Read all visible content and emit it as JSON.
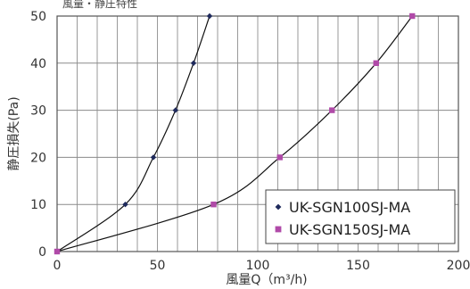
{
  "chart_data": {
    "type": "line",
    "title": "",
    "top_fragment": "風量・静圧特性",
    "xlabel": "風量Q（m³/h)",
    "ylabel": "静圧損失(Pa)",
    "xlim": [
      0,
      200
    ],
    "ylim": [
      0,
      50
    ],
    "x_ticks": [
      0,
      50,
      100,
      150,
      200
    ],
    "y_ticks": [
      0,
      10,
      20,
      30,
      40,
      50
    ],
    "minor_x_step": 10,
    "grid": true,
    "legend_position": "bottom-right",
    "series": [
      {
        "name": "UK-SGN100SJ-MA",
        "marker": "diamond",
        "color": "#1f2a5c",
        "points": [
          [
            0,
            0
          ],
          [
            34,
            10
          ],
          [
            48,
            20
          ],
          [
            59,
            30
          ],
          [
            68,
            40
          ],
          [
            76,
            50
          ]
        ]
      },
      {
        "name": "UK-SGN150SJ-MA",
        "marker": "square",
        "color": "#b04aa8",
        "points": [
          [
            0,
            0
          ],
          [
            78,
            10
          ],
          [
            111,
            20
          ],
          [
            137,
            30
          ],
          [
            159,
            40
          ],
          [
            177,
            50
          ]
        ]
      }
    ]
  }
}
